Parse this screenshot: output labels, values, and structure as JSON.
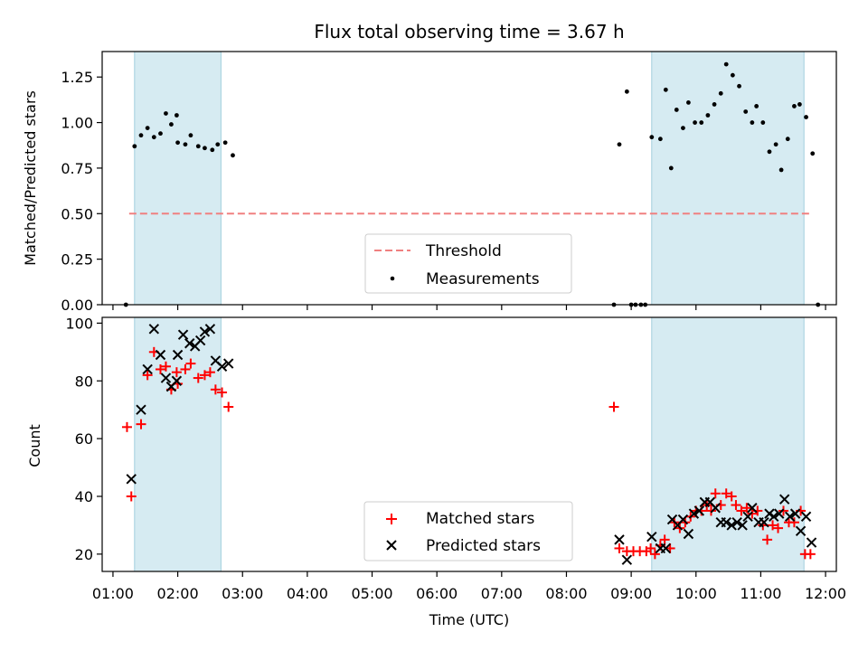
{
  "title": "Flux total observing time = 3.67 h",
  "chart_data": [
    {
      "type": "scatter",
      "ylabel": "Matched/Predicted stars",
      "ylim": [
        0,
        1.39
      ],
      "yticks": [
        0.0,
        0.25,
        0.5,
        0.75,
        1.0,
        1.25
      ],
      "ytick_labels": [
        "0.00",
        "0.25",
        "0.50",
        "0.75",
        "1.00",
        "1.25"
      ],
      "grid": false,
      "legend_position": "bottom-center",
      "shaded_intervals": [
        [
          "01:20",
          "02:40"
        ],
        [
          "09:19",
          "11:40"
        ]
      ],
      "threshold": {
        "name": "Threshold",
        "y": 0.5,
        "x": [
          "01:15",
          "11:45"
        ],
        "color": "#f08080"
      },
      "series": [
        {
          "name": "Measurements",
          "color": "#000000",
          "points": [
            [
              "01:12",
              0.0
            ],
            [
              "01:20",
              0.87
            ],
            [
              "01:26",
              0.93
            ],
            [
              "01:32",
              0.97
            ],
            [
              "01:38",
              0.92
            ],
            [
              "01:44",
              0.94
            ],
            [
              "01:49",
              1.05
            ],
            [
              "01:54",
              0.99
            ],
            [
              "01:59",
              1.04
            ],
            [
              "02:00",
              0.89
            ],
            [
              "02:07",
              0.88
            ],
            [
              "02:12",
              0.93
            ],
            [
              "02:19",
              0.87
            ],
            [
              "02:25",
              0.86
            ],
            [
              "02:32",
              0.85
            ],
            [
              "02:37",
              0.88
            ],
            [
              "02:44",
              0.89
            ],
            [
              "02:51",
              0.82
            ],
            [
              "08:44",
              0.0
            ],
            [
              "08:49",
              0.88
            ],
            [
              "08:56",
              1.17
            ],
            [
              "09:00",
              0.0
            ],
            [
              "09:04",
              0.0
            ],
            [
              "09:09",
              0.0
            ],
            [
              "09:13",
              0.0
            ],
            [
              "09:19",
              0.92
            ],
            [
              "09:27",
              0.91
            ],
            [
              "09:32",
              1.18
            ],
            [
              "09:37",
              0.75
            ],
            [
              "09:42",
              1.07
            ],
            [
              "09:48",
              0.97
            ],
            [
              "09:53",
              1.11
            ],
            [
              "09:59",
              1.0
            ],
            [
              "10:05",
              1.0
            ],
            [
              "10:11",
              1.04
            ],
            [
              "10:17",
              1.1
            ],
            [
              "10:23",
              1.16
            ],
            [
              "10:28",
              1.32
            ],
            [
              "10:34",
              1.26
            ],
            [
              "10:40",
              1.2
            ],
            [
              "10:46",
              1.06
            ],
            [
              "10:52",
              1.0
            ],
            [
              "10:56",
              1.09
            ],
            [
              "11:02",
              1.0
            ],
            [
              "11:08",
              0.84
            ],
            [
              "11:14",
              0.88
            ],
            [
              "11:19",
              0.74
            ],
            [
              "11:25",
              0.91
            ],
            [
              "11:31",
              1.09
            ],
            [
              "11:36",
              1.1
            ],
            [
              "11:42",
              1.03
            ],
            [
              "11:48",
              0.83
            ],
            [
              "11:53",
              0.0
            ]
          ]
        }
      ]
    },
    {
      "type": "scatter",
      "xlabel": "Time (UTC)",
      "ylabel": "Count",
      "ylim": [
        14,
        102
      ],
      "yticks": [
        20,
        40,
        60,
        80,
        100
      ],
      "ytick_labels": [
        "20",
        "40",
        "60",
        "80",
        "100"
      ],
      "xlim": [
        "00:50",
        "12:10"
      ],
      "xtick_labels": [
        "01:00",
        "02:00",
        "03:00",
        "04:00",
        "05:00",
        "06:00",
        "07:00",
        "08:00",
        "09:00",
        "10:00",
        "11:00",
        "12:00"
      ],
      "grid": false,
      "legend_position": "bottom-center",
      "shaded_intervals": [
        [
          "01:20",
          "02:40"
        ],
        [
          "09:19",
          "11:40"
        ]
      ],
      "series": [
        {
          "name": "Matched stars",
          "marker": "+",
          "color": "#ff0000",
          "points": [
            [
              "01:13",
              64
            ],
            [
              "01:17",
              40
            ],
            [
              "01:26",
              65
            ],
            [
              "01:32",
              82
            ],
            [
              "01:38",
              90
            ],
            [
              "01:44",
              84
            ],
            [
              "01:49",
              85
            ],
            [
              "01:54",
              77
            ],
            [
              "01:59",
              83
            ],
            [
              "02:00",
              79
            ],
            [
              "02:07",
              84
            ],
            [
              "02:12",
              86
            ],
            [
              "02:19",
              81
            ],
            [
              "02:25",
              82
            ],
            [
              "02:30",
              83
            ],
            [
              "02:35",
              77
            ],
            [
              "02:41",
              76
            ],
            [
              "02:47",
              71
            ],
            [
              "08:44",
              71
            ],
            [
              "08:49",
              22
            ],
            [
              "08:56",
              21
            ],
            [
              "09:02",
              21
            ],
            [
              "09:08",
              21
            ],
            [
              "09:14",
              21
            ],
            [
              "09:18",
              22
            ],
            [
              "09:22",
              20
            ],
            [
              "09:27",
              23
            ],
            [
              "09:31",
              25
            ],
            [
              "09:36",
              22
            ],
            [
              "09:40",
              31
            ],
            [
              "09:45",
              29
            ],
            [
              "09:50",
              31
            ],
            [
              "09:55",
              33
            ],
            [
              "10:00",
              35
            ],
            [
              "10:05",
              35
            ],
            [
              "10:10",
              37
            ],
            [
              "10:14",
              35
            ],
            [
              "10:18",
              41
            ],
            [
              "10:23",
              37
            ],
            [
              "10:28",
              41
            ],
            [
              "10:33",
              40
            ],
            [
              "10:37",
              37
            ],
            [
              "10:42",
              35
            ],
            [
              "10:47",
              36
            ],
            [
              "10:52",
              34
            ],
            [
              "10:57",
              35
            ],
            [
              "11:02",
              30
            ],
            [
              "11:06",
              25
            ],
            [
              "11:11",
              30
            ],
            [
              "11:16",
              29
            ],
            [
              "11:21",
              35
            ],
            [
              "11:26",
              31
            ],
            [
              "11:31",
              31
            ],
            [
              "11:37",
              35
            ],
            [
              "11:41",
              20
            ],
            [
              "11:46",
              20
            ]
          ]
        },
        {
          "name": "Predicted stars",
          "marker": "x",
          "color": "#000000",
          "points": [
            [
              "01:17",
              46
            ],
            [
              "01:26",
              70
            ],
            [
              "01:32",
              84
            ],
            [
              "01:38",
              98
            ],
            [
              "01:44",
              89
            ],
            [
              "01:49",
              81
            ],
            [
              "01:54",
              78
            ],
            [
              "01:59",
              80
            ],
            [
              "02:00",
              89
            ],
            [
              "02:05",
              96
            ],
            [
              "02:11",
              93
            ],
            [
              "02:16",
              92
            ],
            [
              "02:21",
              94
            ],
            [
              "02:25",
              97
            ],
            [
              "02:30",
              98
            ],
            [
              "02:35",
              87
            ],
            [
              "02:41",
              85
            ],
            [
              "02:47",
              86
            ],
            [
              "08:49",
              25
            ],
            [
              "08:56",
              18
            ],
            [
              "09:19",
              26
            ],
            [
              "09:27",
              22
            ],
            [
              "09:32",
              22
            ],
            [
              "09:38",
              32
            ],
            [
              "09:43",
              30
            ],
            [
              "09:48",
              32
            ],
            [
              "09:53",
              27
            ],
            [
              "09:58",
              34
            ],
            [
              "10:03",
              35
            ],
            [
              "10:08",
              38
            ],
            [
              "10:13",
              38
            ],
            [
              "10:18",
              36
            ],
            [
              "10:23",
              31
            ],
            [
              "10:28",
              31
            ],
            [
              "10:33",
              30
            ],
            [
              "10:38",
              31
            ],
            [
              "10:43",
              30
            ],
            [
              "10:48",
              33
            ],
            [
              "10:52",
              36
            ],
            [
              "10:58",
              31
            ],
            [
              "11:03",
              31
            ],
            [
              "11:08",
              34
            ],
            [
              "11:12",
              33
            ],
            [
              "11:17",
              34
            ],
            [
              "11:22",
              39
            ],
            [
              "11:27",
              33
            ],
            [
              "11:32",
              34
            ],
            [
              "11:37",
              28
            ],
            [
              "11:42",
              33
            ],
            [
              "11:47",
              24
            ]
          ]
        }
      ]
    }
  ]
}
